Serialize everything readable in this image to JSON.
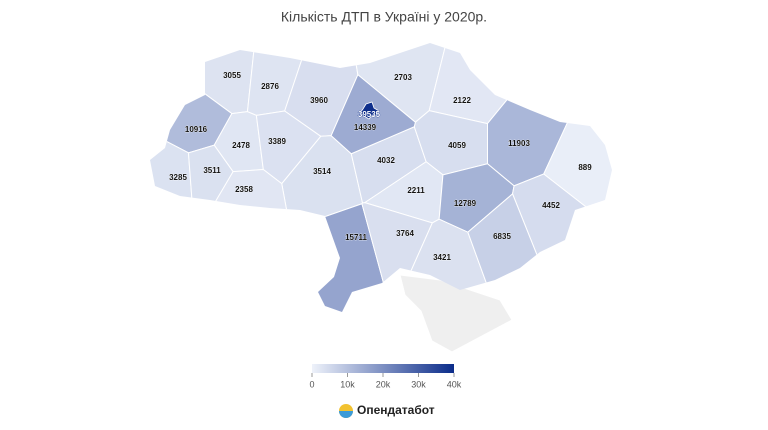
{
  "chart_data": {
    "type": "choropleth",
    "title": "Кількість ДТП в Україні у 2020р.",
    "values": [
      3055,
      2876,
      3960,
      2703,
      2122,
      10916,
      2478,
      3389,
      3514,
      4032,
      4059,
      11903,
      889,
      3285,
      3511,
      2358,
      2211,
      12789,
      4452,
      15711,
      3764,
      3421,
      6835,
      14339,
      39535
    ],
    "color_low": "#eef2fa",
    "color_high": "#0b2c8a",
    "clim": [
      0,
      40000
    ],
    "cticks": [
      0,
      {
        "value": 10000,
        "label": "10k"
      },
      {
        "value": 20000,
        "label": "20k"
      },
      {
        "value": 30000,
        "label": "30k"
      },
      {
        "value": 40000,
        "label": "40k"
      }
    ]
  },
  "brand": "Опендатабот"
}
